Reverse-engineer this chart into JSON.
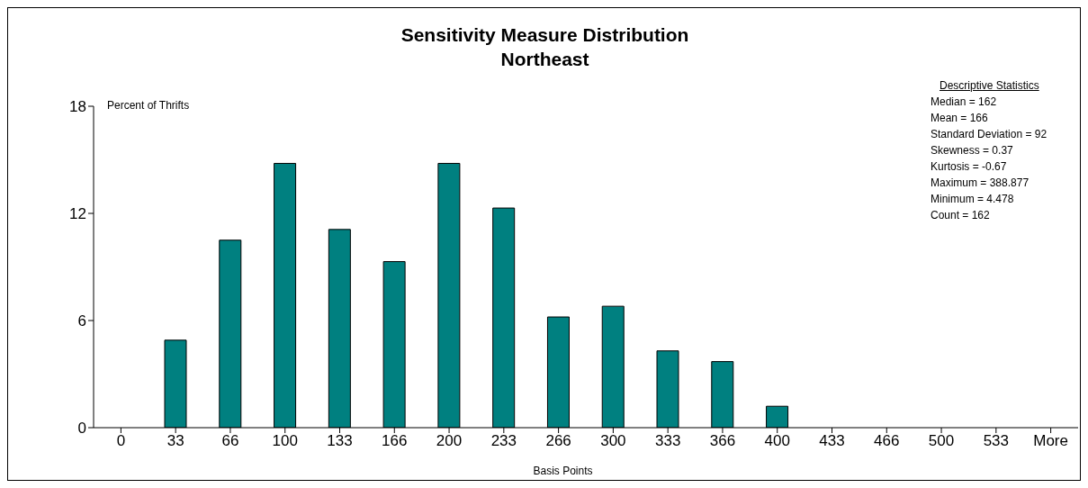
{
  "chart_data": {
    "type": "bar",
    "title": "Sensitivity Measure Distribution\nNortheast",
    "xlabel": "Basis Points",
    "ylabel": "Percent of Thrifts",
    "categories": [
      "0",
      "33",
      "66",
      "100",
      "133",
      "166",
      "200",
      "233",
      "266",
      "300",
      "333",
      "366",
      "400",
      "433",
      "466",
      "500",
      "533",
      "More"
    ],
    "values": [
      0,
      4.9,
      10.5,
      14.8,
      11.1,
      9.3,
      14.8,
      12.3,
      6.2,
      6.8,
      4.3,
      3.7,
      1.2,
      0,
      0,
      0,
      0,
      0
    ],
    "color": "#008080",
    "ylim": [
      0,
      18
    ],
    "yticks": [
      0,
      6,
      12,
      18
    ],
    "grid": false,
    "annotations": [
      "Descriptive Statistics",
      "Median = 162",
      "Mean = 166",
      "Standard Deviation = 92",
      "Skewness = 0.37",
      "Kurtosis = -0.67",
      "Maximum = 388.877",
      "Minimum = 4.478",
      "Count = 162"
    ]
  }
}
